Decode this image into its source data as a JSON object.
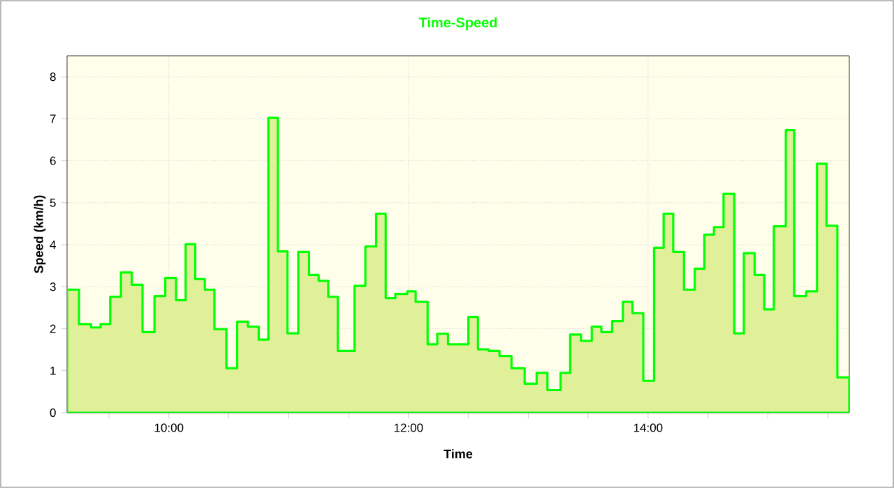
{
  "chart_data": {
    "type": "area",
    "title": "Time-Speed",
    "xlabel": "Time",
    "ylabel": "Speed (km/h)",
    "x": [
      9.15,
      9.25,
      9.35,
      9.43,
      9.51,
      9.6,
      9.69,
      9.78,
      9.88,
      9.97,
      10.06,
      10.14,
      10.22,
      10.3,
      10.38,
      10.48,
      10.57,
      10.66,
      10.75,
      10.83,
      10.91,
      10.99,
      11.08,
      11.17,
      11.25,
      11.33,
      11.41,
      11.55,
      11.64,
      11.73,
      11.81,
      11.89,
      11.99,
      12.06,
      12.16,
      12.24,
      12.33,
      12.5,
      12.58,
      12.67,
      12.76,
      12.86,
      12.97,
      13.07,
      13.16,
      13.27,
      13.35,
      13.44,
      13.53,
      13.61,
      13.7,
      13.79,
      13.87,
      13.96,
      14.05,
      14.13,
      14.21,
      14.3,
      14.39,
      14.47,
      14.55,
      14.63,
      14.72,
      14.8,
      14.89,
      14.97,
      15.05,
      15.15,
      15.22,
      15.32,
      15.41,
      15.49,
      15.58,
      15.68
    ],
    "values": [
      2.93,
      2.11,
      2.03,
      2.11,
      2.76,
      3.34,
      3.05,
      1.92,
      2.78,
      3.21,
      2.68,
      4.01,
      3.18,
      2.93,
      1.99,
      1.06,
      2.17,
      2.05,
      1.74,
      7.02,
      3.84,
      1.89,
      3.83,
      3.28,
      3.14,
      2.76,
      1.47,
      3.02,
      3.96,
      4.74,
      2.73,
      2.83,
      2.89,
      2.64,
      1.63,
      1.88,
      1.63,
      2.28,
      1.51,
      1.47,
      1.35,
      1.06,
      0.69,
      0.95,
      0.54,
      0.95,
      1.86,
      1.71,
      2.05,
      1.92,
      2.18,
      2.64,
      2.37,
      0.76,
      3.93,
      4.74,
      3.83,
      2.93,
      3.43,
      4.24,
      4.42,
      5.21,
      1.89,
      3.8,
      3.28,
      2.46,
      4.44,
      6.73,
      2.78,
      2.89,
      5.93,
      4.45,
      0.84,
      0.84
    ],
    "color": "#e0f099",
    "xlim": [
      9.15,
      15.68
    ],
    "ylim": [
      0,
      8.5
    ],
    "xticks": [
      {
        "value": 9.5,
        "label": null
      },
      {
        "value": 10,
        "label": "10:00"
      },
      {
        "value": 10.5,
        "label": null
      },
      {
        "value": 11,
        "label": null
      },
      {
        "value": 11.5,
        "label": null
      },
      {
        "value": 12,
        "label": "12:00"
      },
      {
        "value": 12.5,
        "label": null
      },
      {
        "value": 13,
        "label": null
      },
      {
        "value": 13.5,
        "label": null
      },
      {
        "value": 14,
        "label": "14:00"
      },
      {
        "value": 14.5,
        "label": null
      },
      {
        "value": 15,
        "label": null
      },
      {
        "value": 15.5,
        "label": null
      }
    ],
    "yticks": [
      0,
      1,
      2,
      3,
      4,
      5,
      6,
      7,
      8
    ],
    "grid": true
  }
}
